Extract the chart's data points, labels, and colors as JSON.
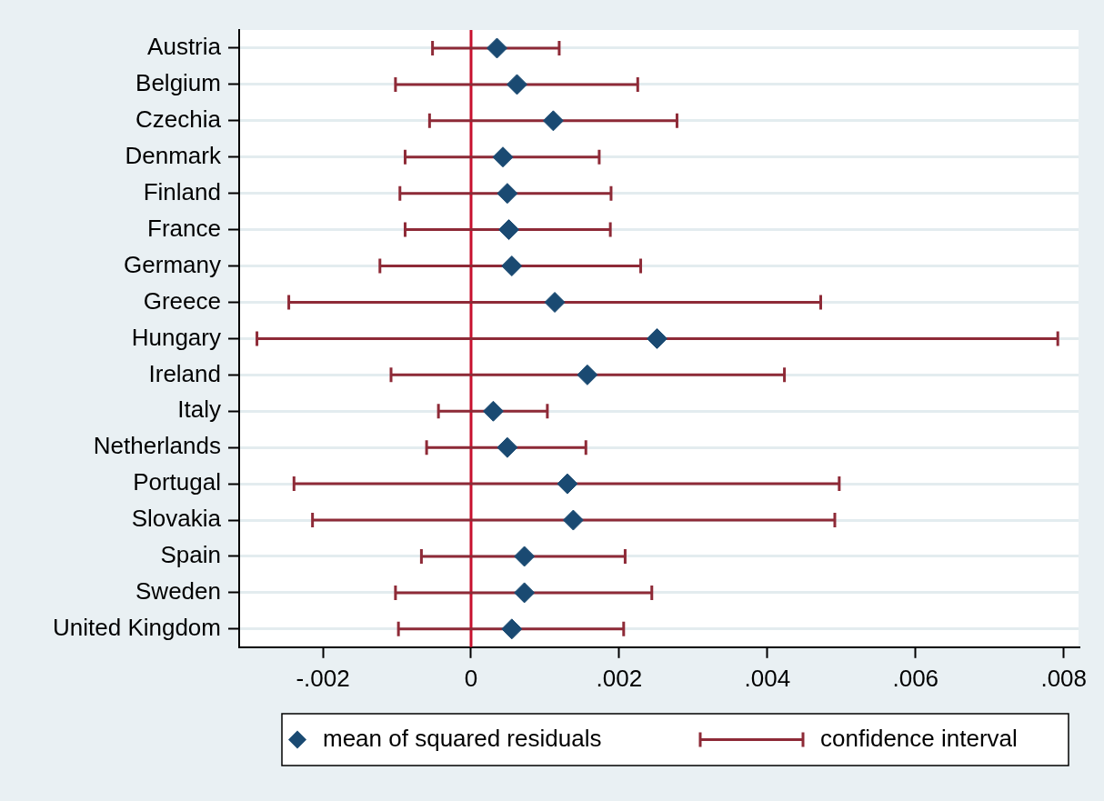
{
  "chart_data": {
    "type": "scatter",
    "orientation": "horizontal",
    "categories": [
      "Austria",
      "Belgium",
      "Czechia",
      "Denmark",
      "Finland",
      "France",
      "Germany",
      "Greece",
      "Hungary",
      "Ireland",
      "Italy",
      "Netherlands",
      "Portugal",
      "Slovakia",
      "Spain",
      "Sweden",
      "United Kingdom"
    ],
    "series": [
      {
        "name": "mean of squared residuals",
        "color": "#1a4a72",
        "values": [
          0.00035,
          0.00062,
          0.00111,
          0.00043,
          0.00049,
          0.00051,
          0.00055,
          0.00113,
          0.00251,
          0.00157,
          0.0003,
          0.00049,
          0.0013,
          0.00138,
          0.00072,
          0.00072,
          0.00055
        ],
        "errors": [
          [
            -0.00052,
            0.00119
          ],
          [
            -0.00102,
            0.00225
          ],
          [
            -0.00056,
            0.00278
          ],
          [
            -0.00089,
            0.00173
          ],
          [
            -0.00096,
            0.00189
          ],
          [
            -0.00089,
            0.00188
          ],
          [
            -0.00123,
            0.00229
          ],
          [
            -0.00246,
            0.00472
          ],
          [
            -0.00289,
            0.00792
          ],
          [
            -0.00108,
            0.00423
          ],
          [
            -0.00044,
            0.00103
          ],
          [
            -0.0006,
            0.00155
          ],
          [
            -0.00239,
            0.00497
          ],
          [
            -0.00214,
            0.00491
          ],
          [
            -0.00067,
            0.00208
          ],
          [
            -0.00102,
            0.00244
          ],
          [
            -0.00098,
            0.00206
          ]
        ]
      }
    ],
    "annotations": [
      "confidence interval"
    ],
    "xlim": [
      -0.00313,
      0.0082
    ],
    "xticks": [
      {
        "value": -0.002,
        "label": "-.002"
      },
      0,
      {
        "value": 0.002,
        "label": ".002"
      },
      {
        "value": 0.004,
        "label": ".004"
      },
      {
        "value": 0.006,
        "label": ".006"
      },
      {
        "value": 0.008,
        "label": ".008"
      }
    ],
    "ref_lines": [
      {
        "axis": "x",
        "value": 0,
        "color": "#c8102e"
      }
    ],
    "grid": "y",
    "legend": "bottom",
    "marker": "diamond"
  }
}
